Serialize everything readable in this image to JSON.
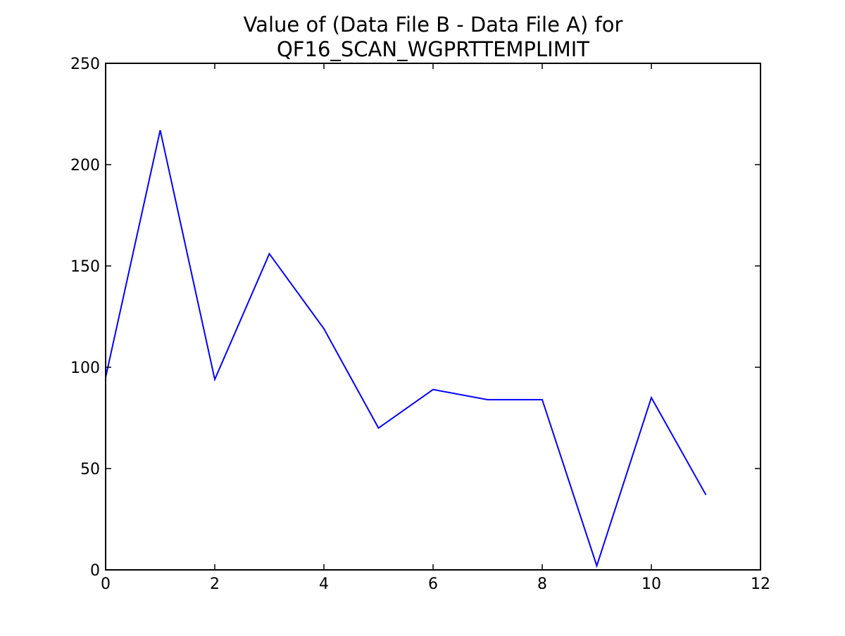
{
  "chart_data": {
    "type": "line",
    "title_lines": [
      "Value of (Data File B - Data File A) for",
      "QF16_SCAN_WGPRTTEMPLIMIT"
    ],
    "xlabel": "",
    "ylabel": "",
    "xlim": [
      0,
      12
    ],
    "ylim": [
      0,
      250
    ],
    "xticks": [
      0,
      2,
      4,
      6,
      8,
      10,
      12
    ],
    "yticks": [
      0,
      50,
      100,
      150,
      200,
      250
    ],
    "grid": false,
    "legend": "none",
    "series": [
      {
        "color": "#0000ff",
        "x": [
          0,
          1,
          2,
          3,
          4,
          5,
          6,
          7,
          8,
          9,
          10,
          11
        ],
        "y": [
          95,
          217,
          94,
          156,
          119,
          70,
          89,
          84,
          84,
          2,
          85,
          37
        ]
      }
    ]
  }
}
